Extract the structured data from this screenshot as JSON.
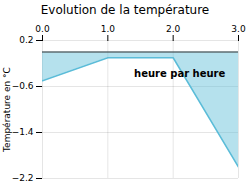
{
  "chart_data": {
    "type": "area",
    "title": "Evolution de la température",
    "xlabel": "heure par heure",
    "ylabel": "Température en °C",
    "x": [
      0,
      1,
      2,
      3
    ],
    "values": [
      -0.5,
      -0.1,
      -0.1,
      -2.0
    ],
    "color": "#5bbcd8",
    "xlim": [
      0,
      3
    ],
    "xticks": [
      0,
      1,
      2,
      3
    ],
    "ylim": [
      -2.2,
      0.2
    ],
    "yticks": [
      0.2,
      -0.6,
      -1.4,
      -2.2
    ],
    "grid": true
  }
}
